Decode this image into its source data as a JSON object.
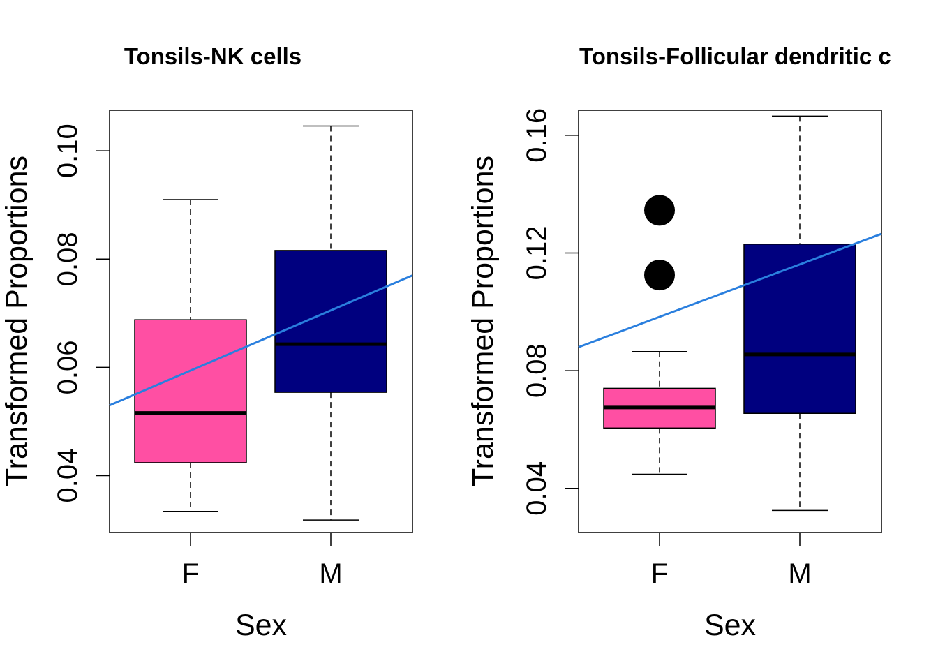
{
  "chart_data": [
    {
      "type": "box",
      "title": "Tonsils-NK cells",
      "xlabel": "Sex",
      "ylabel": "Transformed Proportions",
      "categories": [
        "F",
        "M"
      ],
      "yticks": [
        "0.04",
        "0.06",
        "0.08",
        "0.10"
      ],
      "ylim": [
        0.0295,
        0.1075
      ],
      "boxes": [
        {
          "label": "F",
          "color": "#FF4FA3",
          "min": 0.0334,
          "q1": 0.0424,
          "median": 0.0516,
          "q3": 0.0688,
          "max": 0.091,
          "outliers": []
        },
        {
          "label": "M",
          "color": "#00007F",
          "min": 0.0318,
          "q1": 0.0554,
          "median": 0.0643,
          "q3": 0.0816,
          "max": 0.1046,
          "outliers": []
        }
      ],
      "trend_line": {
        "color": "#2A7FDE",
        "at_x_left": 0.053,
        "at_x_right": 0.077
      }
    },
    {
      "type": "box",
      "title": "Tonsils-Follicular dendritic c",
      "xlabel": "Sex",
      "ylabel": "Transformed Proportions",
      "categories": [
        "F",
        "M"
      ],
      "yticks": [
        "0.04",
        "0.08",
        "0.12",
        "0.16"
      ],
      "ylim": [
        0.025,
        0.1685
      ],
      "boxes": [
        {
          "label": "F",
          "color": "#FF4FA3",
          "min": 0.0448,
          "q1": 0.0605,
          "median": 0.0675,
          "q3": 0.074,
          "max": 0.0865,
          "outliers": [
            0.1345,
            0.1125
          ]
        },
        {
          "label": "M",
          "color": "#00007F",
          "min": 0.0325,
          "q1": 0.0655,
          "median": 0.0855,
          "q3": 0.123,
          "max": 0.1665,
          "outliers": []
        }
      ],
      "trend_line": {
        "color": "#2A7FDE",
        "at_x_left": 0.088,
        "at_x_right": 0.1265
      }
    }
  ]
}
